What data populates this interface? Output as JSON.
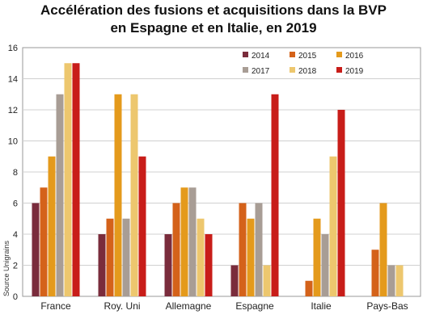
{
  "chart_data": {
    "type": "bar",
    "title_line1": "Accélération des fusions et acquisitions dans la BVP",
    "title_line2": "en Espagne et en Italie, en 2019",
    "source": "Source Unigrains",
    "categories": [
      "France",
      "Roy. Uni",
      "Allemagne",
      "Espagne",
      "Italie",
      "Pays-Bas"
    ],
    "ylim": [
      0,
      16
    ],
    "yticks": [
      0,
      2,
      4,
      6,
      8,
      10,
      12,
      14,
      16
    ],
    "grid": true,
    "legend_position": "top-right",
    "series": [
      {
        "name": "2014",
        "color": "#7a2c3c",
        "values": [
          6,
          4,
          4,
          2,
          0,
          0
        ]
      },
      {
        "name": "2015",
        "color": "#d4621a",
        "values": [
          7,
          5,
          6,
          6,
          1,
          3
        ]
      },
      {
        "name": "2016",
        "color": "#e49a1c",
        "values": [
          9,
          13,
          7,
          5,
          5,
          6
        ]
      },
      {
        "name": "2017",
        "color": "#a89d95",
        "values": [
          13,
          5,
          7,
          6,
          4,
          2
        ]
      },
      {
        "name": "2018",
        "color": "#edc76e",
        "values": [
          15,
          13,
          5,
          2,
          9,
          2
        ]
      },
      {
        "name": "2019",
        "color": "#c81d19",
        "values": [
          15,
          9,
          4,
          13,
          12,
          0
        ]
      }
    ]
  }
}
